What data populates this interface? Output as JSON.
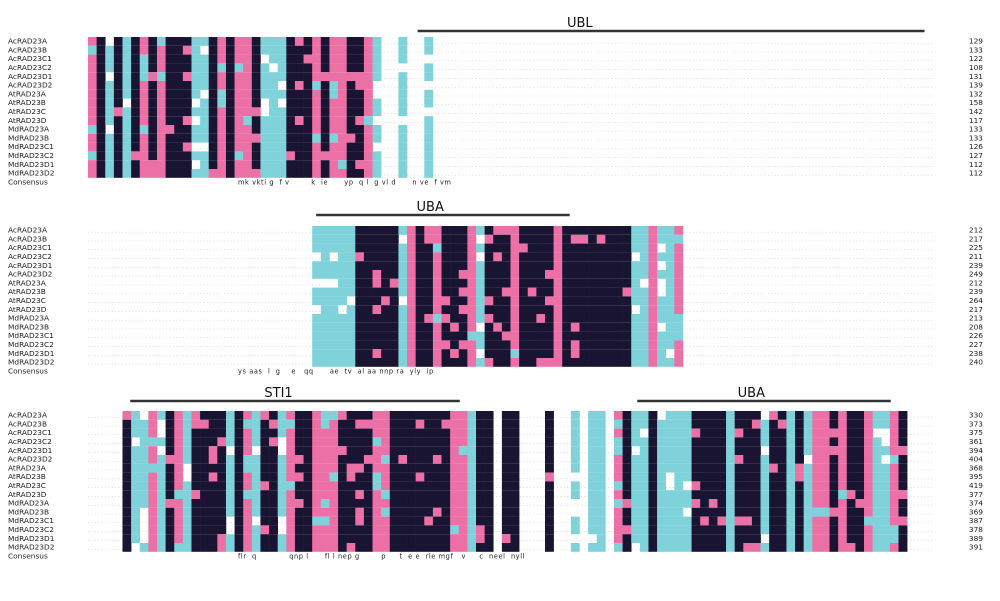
{
  "colors": {
    "identical": "#1a1433",
    "high": "#ec6fa6",
    "medium": "#7fd2d9",
    "domain_bar": "#333333",
    "text": "#222222"
  },
  "domain_labels": [
    {
      "block": 0,
      "start": 0.39,
      "end": 0.99,
      "label": "UBL"
    },
    {
      "block": 1,
      "start": 0.27,
      "end": 0.57,
      "label": "UBA"
    },
    {
      "block": 2,
      "start": 0.05,
      "end": 0.44,
      "label": "STI1"
    },
    {
      "block": 2,
      "start": 0.65,
      "end": 0.95,
      "label": "UBA"
    }
  ],
  "consensus_label": "Consensus",
  "blocks": [
    {
      "sequences": [
        {
          "name": "AcRAD23A",
          "end": "129"
        },
        {
          "name": "AcRAD23B",
          "end": "133"
        },
        {
          "name": "AcRAD23C1",
          "end": "122"
        },
        {
          "name": "AcRAD23C2",
          "end": "108"
        },
        {
          "name": "AcRAD23D1",
          "end": "131"
        },
        {
          "name": "AcRAD23D2",
          "end": "139"
        },
        {
          "name": "AtRAD23A",
          "end": "132"
        },
        {
          "name": "AtRAD23B",
          "end": "158"
        },
        {
          "name": "AtRAD23C",
          "end": "142"
        },
        {
          "name": "AtRAD23D",
          "end": "117"
        },
        {
          "name": "MdRAD23A",
          "end": "133"
        },
        {
          "name": "MdRAD23B",
          "end": "133"
        },
        {
          "name": "MdRAD23C1",
          "end": "126"
        },
        {
          "name": "MdRAD23C2",
          "end": "127"
        },
        {
          "name": "MdRAD23D1",
          "end": "112"
        },
        {
          "name": "MdRAD23D2",
          "end": "112"
        }
      ],
      "consensus": "mk vkti g  f v        k  ie      yp  q l  g vl d      n ve  f vm"
    },
    {
      "sequences": [
        {
          "name": "AcRAD23A",
          "end": "212"
        },
        {
          "name": "AcRAD23B",
          "end": "217"
        },
        {
          "name": "AcRAD23C1",
          "end": "225"
        },
        {
          "name": "AcRAD23C2",
          "end": "211"
        },
        {
          "name": "AcRAD23D1",
          "end": "239"
        },
        {
          "name": "AcRAD23D2",
          "end": "249"
        },
        {
          "name": "AtRAD23A",
          "end": "212"
        },
        {
          "name": "AtRAD23B",
          "end": "239"
        },
        {
          "name": "AtRAD23C",
          "end": "264"
        },
        {
          "name": "AtRAD23D",
          "end": "217"
        },
        {
          "name": "MdRAD23A",
          "end": "213"
        },
        {
          "name": "MdRAD23B",
          "end": "208"
        },
        {
          "name": "MdRAD23C1",
          "end": "226"
        },
        {
          "name": "MdRAD23C2",
          "end": "227"
        },
        {
          "name": "MdRAD23D1",
          "end": "238"
        },
        {
          "name": "MdRAD23D2",
          "end": "240"
        }
      ],
      "consensus": "ys aas  l  g    e   qq      ae  tv  al aa nnp ra  yly  ip"
    },
    {
      "sequences": [
        {
          "name": "AcRAD23A",
          "end": "330"
        },
        {
          "name": "AcRAD23B",
          "end": "373"
        },
        {
          "name": "AcRAD23C1",
          "end": "375"
        },
        {
          "name": "AcRAD23C2",
          "end": "361"
        },
        {
          "name": "AcRAD23D1",
          "end": "394"
        },
        {
          "name": "AcRAD23D2",
          "end": "404"
        },
        {
          "name": "AtRAD23A",
          "end": "368"
        },
        {
          "name": "AtRAD23B",
          "end": "395"
        },
        {
          "name": "AtRAD23C",
          "end": "419"
        },
        {
          "name": "AtRAD23D",
          "end": "377"
        },
        {
          "name": "MdRAD23A",
          "end": "374"
        },
        {
          "name": "MdRAD23B",
          "end": "369"
        },
        {
          "name": "MdRAD23C1",
          "end": "387"
        },
        {
          "name": "MdRAD23C2",
          "end": "378"
        },
        {
          "name": "MdRAD23D1",
          "end": "389"
        },
        {
          "name": "MdRAD23D2",
          "end": "391"
        }
      ],
      "consensus": "flr  q            qnp l      fl l nep g        p     t  e e  rle mgf   v     c  neel  nyll"
    }
  ]
}
